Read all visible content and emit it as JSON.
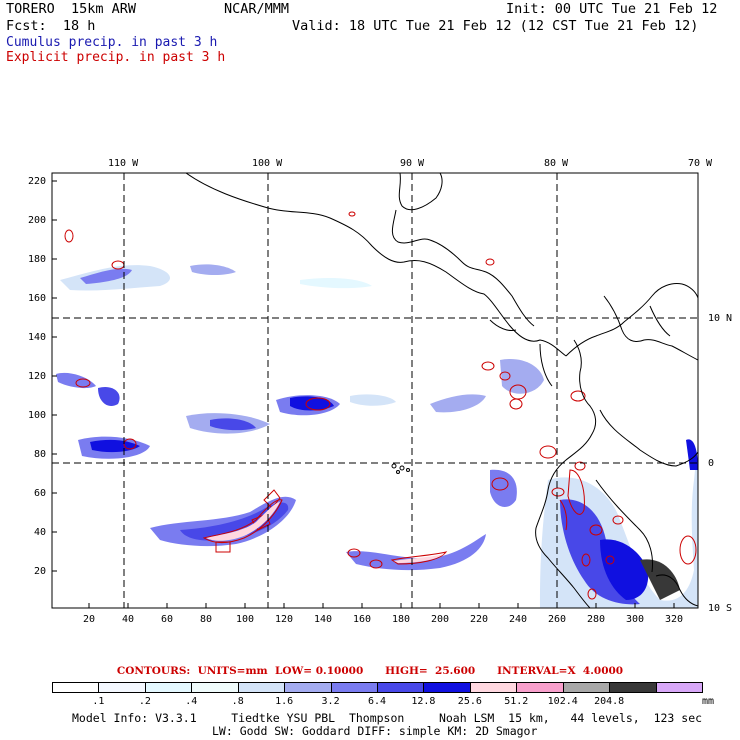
{
  "header": {
    "model": "TORERO  15km ARW",
    "org": "NCAR/MMM",
    "init": "Init: 00 UTC Tue 21 Feb 12",
    "fcst": "Fcst:  18 h",
    "valid": "Valid: 18 UTC Tue 21 Feb 12 (12 CST Tue 21 Feb 12)",
    "legend_cumulus": "Cumulus precip. in past 3 h",
    "legend_explicit": "Explicit precip. in past 3 h"
  },
  "map": {
    "lon_labels": [
      "110 W",
      "100 W",
      "90 W",
      "80 W",
      "70 W"
    ],
    "lat_labels": [
      "10 N",
      "0",
      "10 S"
    ],
    "y_ticks": [
      "220",
      "200",
      "180",
      "160",
      "140",
      "120",
      "100",
      "80",
      "60",
      "40",
      "20"
    ],
    "x_ticks": [
      "20",
      "40",
      "60",
      "80",
      "100",
      "120",
      "140",
      "160",
      "180",
      "200",
      "220",
      "240",
      "260",
      "280",
      "300",
      "320"
    ]
  },
  "contours_text": "CONTOURS:  UNITS=mm  LOW= 0.10000      HIGH=  25.600      INTERVAL=X  4.0000",
  "colorbar": {
    "labels": [
      ".1",
      ".2",
      ".4",
      ".8",
      "1.6",
      "3.2",
      "6.4",
      "12.8",
      "25.6",
      "51.2",
      "102.4",
      "204.8"
    ],
    "unit": "mm",
    "colors": [
      "#ffffff",
      "#f4f8ff",
      "#e4f8ff",
      "#f0fcfc",
      "#d4e4f8",
      "#a4acf0",
      "#7a7cf0",
      "#4848e8",
      "#1010e0",
      "#ffd8e0",
      "#f8a0cc",
      "#a8a8a8",
      "#383838",
      "#d8a8f8"
    ]
  },
  "footer": {
    "line1": "Model Info: V3.3.1     Tiedtke YSU PBL  Thompson     Noah LSM  15 km,   44 levels,  123 sec",
    "line2": "LW: Godd SW: Goddard DIFF: simple KM: 2D Smagor"
  }
}
